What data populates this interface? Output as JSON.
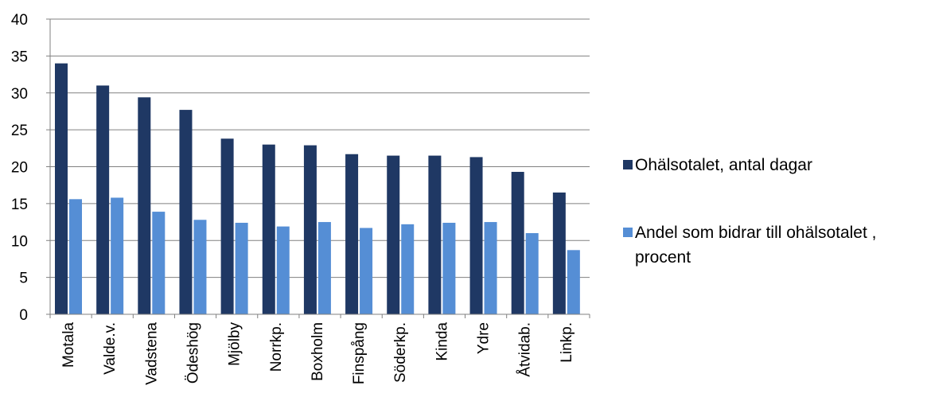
{
  "chart_data": {
    "type": "bar",
    "categories": [
      "Motala",
      "Valde.v.",
      "Vadstena",
      "Ödeshög",
      "Mjölby",
      "Norrkp.",
      "Boxholm",
      "Finspång",
      "Söderkp.",
      "Kinda",
      "Ydre",
      "Åtvidab.",
      "Linkp."
    ],
    "series": [
      {
        "name": "Ohälsotalet, antal dagar",
        "color": "#1f3864",
        "values": [
          34.0,
          31.0,
          29.4,
          27.7,
          23.8,
          23.0,
          22.9,
          21.7,
          21.5,
          21.5,
          21.3,
          19.3,
          16.5
        ]
      },
      {
        "name_lines": [
          "Andel som bidrar till ohälsotalet ,",
          "procent"
        ],
        "color": "#558ed5",
        "values": [
          15.6,
          15.8,
          13.9,
          12.8,
          12.4,
          11.9,
          12.5,
          11.7,
          12.2,
          12.4,
          12.5,
          11.0,
          8.7
        ]
      }
    ],
    "ylim": [
      0,
      40
    ],
    "yticks": [
      "0",
      "5",
      "10",
      "15",
      "20",
      "25",
      "30",
      "35",
      "40"
    ],
    "grid": true,
    "legend": "right"
  }
}
